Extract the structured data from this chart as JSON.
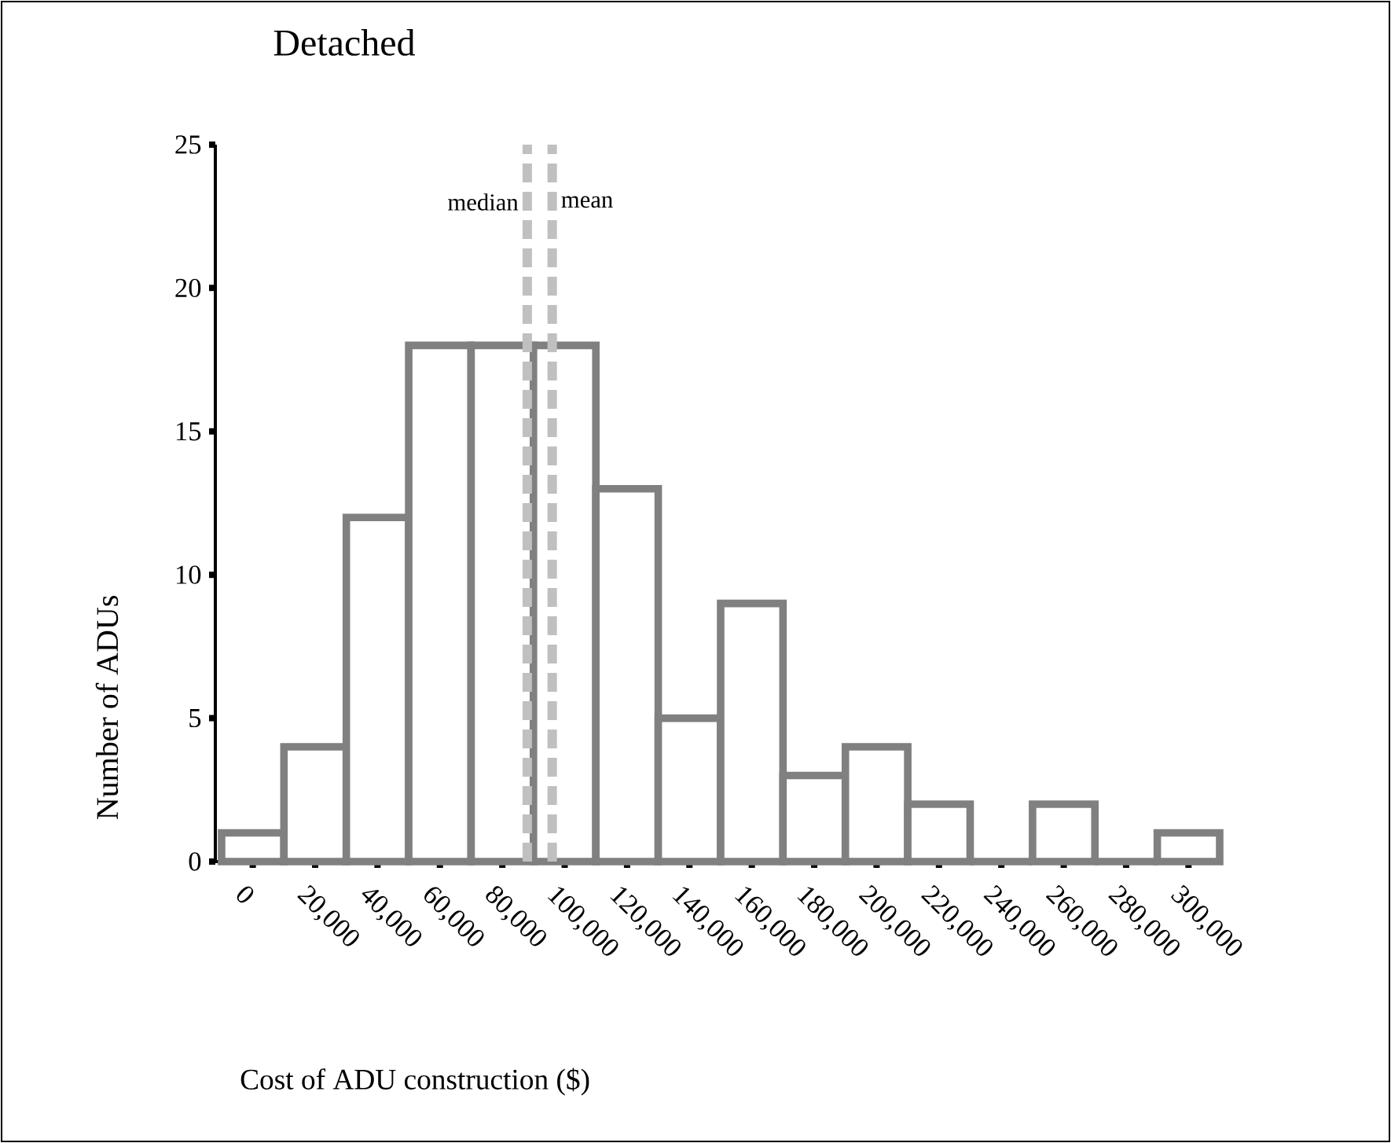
{
  "chart_data": {
    "type": "histogram",
    "title": "Detached",
    "xlabel": "Cost of ADU construction ($)",
    "ylabel": "Number of ADUs",
    "bins": [
      -10000,
      10000,
      30000,
      50000,
      70000,
      90000,
      110000,
      130000,
      150000,
      170000,
      190000,
      210000,
      230000,
      250000,
      270000,
      290000,
      310000
    ],
    "values": [
      1,
      4,
      12,
      18,
      18,
      18,
      13,
      5,
      9,
      3,
      4,
      2,
      0,
      2,
      0,
      1
    ],
    "color": "#808080",
    "xlim": [
      -12000,
      310000
    ],
    "xticks": [
      0,
      {
        "value": 20000,
        "label": "20,000"
      },
      {
        "value": 40000,
        "label": "40,000"
      },
      {
        "value": 60000,
        "label": "60,000"
      },
      {
        "value": 80000,
        "label": "80,000"
      },
      {
        "value": 100000,
        "label": "100,000"
      },
      {
        "value": 120000,
        "label": "120,000"
      },
      {
        "value": 140000,
        "label": "140,000"
      },
      {
        "value": 160000,
        "label": "160,000"
      },
      {
        "value": 180000,
        "label": "180,000"
      },
      {
        "value": 200000,
        "label": "200,000"
      },
      {
        "value": 220000,
        "label": "220,000"
      },
      {
        "value": 240000,
        "label": "240,000"
      },
      {
        "value": 260000,
        "label": "260,000"
      },
      {
        "value": 280000,
        "label": "280,000"
      },
      {
        "value": 300000,
        "label": "300,000"
      }
    ],
    "ylim": [
      0,
      25
    ],
    "yticks": [
      0,
      5,
      10,
      15,
      20,
      25
    ],
    "ref_lines": [
      {
        "axis": "x",
        "value": 88000,
        "label": "median",
        "color": "#c0c0c0",
        "line_style": "dashed"
      },
      {
        "axis": "x",
        "value": 96000,
        "label": "mean",
        "color": "#c0c0c0",
        "line_style": "dashed"
      }
    ]
  }
}
